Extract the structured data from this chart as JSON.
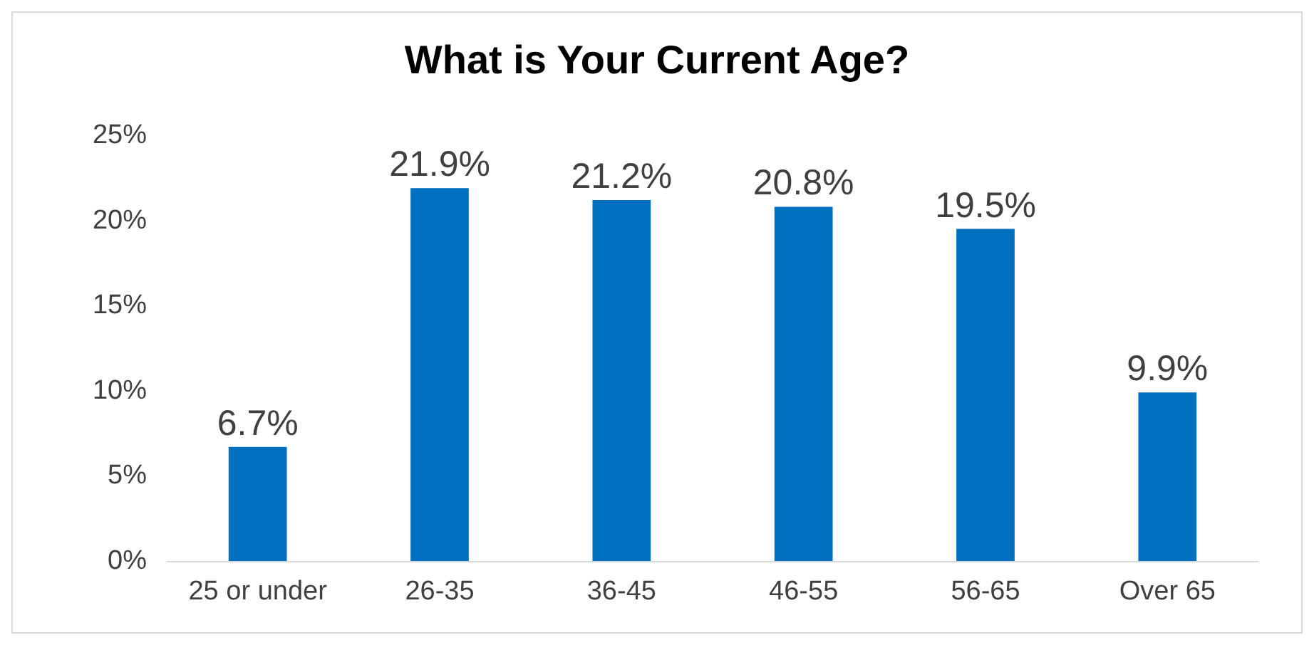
{
  "chart_data": {
    "type": "bar",
    "title": "What is Your Current Age?",
    "categories": [
      "25 or under",
      "26-35",
      "36-45",
      "46-55",
      "56-65",
      "Over 65"
    ],
    "values": [
      6.7,
      21.9,
      21.2,
      20.8,
      19.5,
      9.9
    ],
    "value_labels": [
      "6.7%",
      "21.9%",
      "21.2%",
      "20.8%",
      "19.5%",
      "9.9%"
    ],
    "color": "#0070c0",
    "ylim": [
      0,
      25
    ],
    "yticks": [
      {
        "value": 0,
        "label": "0%"
      },
      {
        "value": 5,
        "label": "5%"
      },
      {
        "value": 10,
        "label": "10%"
      },
      {
        "value": 15,
        "label": "15%"
      },
      {
        "value": 20,
        "label": "20%"
      },
      {
        "value": 25,
        "label": "25%"
      }
    ],
    "grid": false
  }
}
